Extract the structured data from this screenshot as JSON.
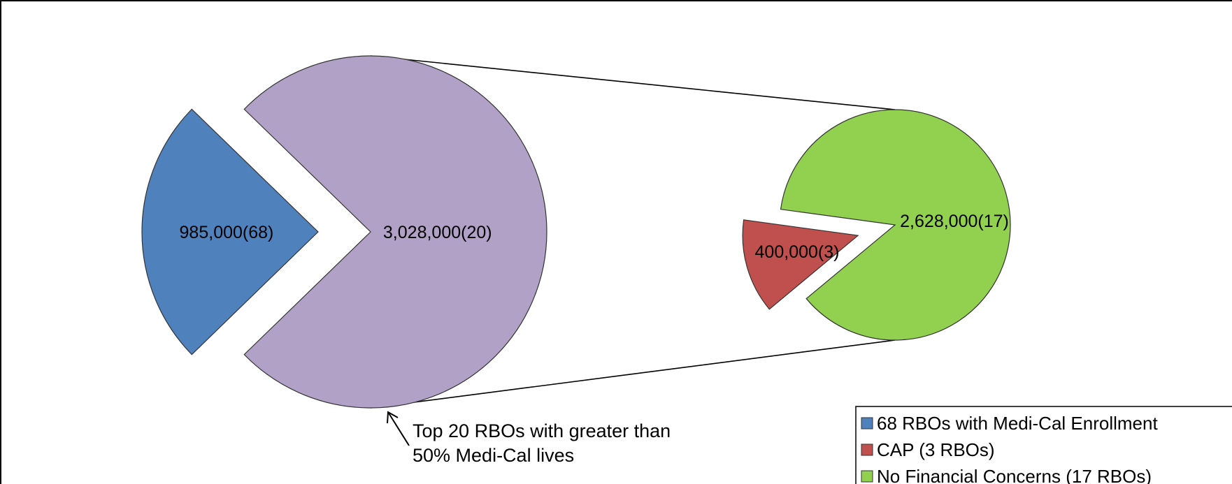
{
  "chart_data": {
    "type": "pie",
    "title": "",
    "main_pie": {
      "slices": [
        {
          "label": "985,000(68)",
          "value": 985000,
          "count": 68,
          "color": "#4f81bd",
          "exploded": true
        },
        {
          "label": "3,028,000(20)",
          "value": 3028000,
          "count": 20,
          "color": "#b2a1c7",
          "exploded": false
        }
      ]
    },
    "secondary_pie": {
      "slices": [
        {
          "label": "400,000(3)",
          "value": 400000,
          "count": 3,
          "color": "#c0504d",
          "exploded": true
        },
        {
          "label": "2,628,000(17)",
          "value": 2628000,
          "count": 17,
          "color": "#92d050",
          "exploded": false
        }
      ]
    },
    "annotation": [
      "Top 20 RBOs with greater than",
      "50% Medi-Cal lives"
    ],
    "legend": {
      "placement": "bottom-right",
      "entries": [
        {
          "label": "68 RBOs with Medi-Cal Enrollment",
          "color": "#4f81bd"
        },
        {
          "label": "CAP (3 RBOs)",
          "color": "#c0504d"
        },
        {
          "label": "No Financial Concerns (17 RBOs)",
          "color": "#92d050"
        }
      ]
    }
  }
}
